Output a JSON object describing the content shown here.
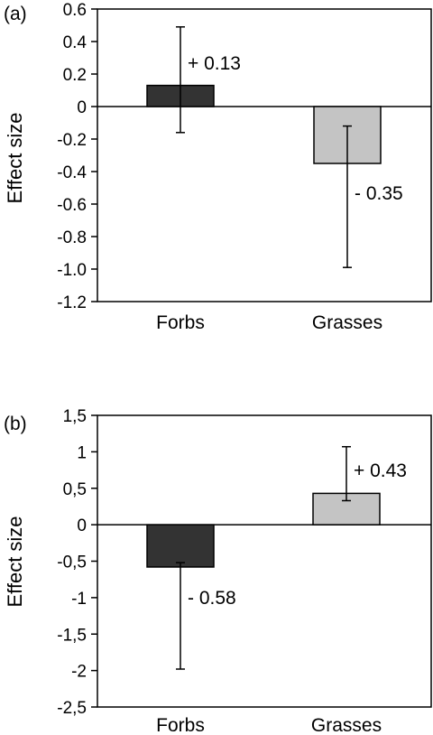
{
  "chart_data": [
    {
      "type": "bar",
      "panel_label": "(a)",
      "ylabel": "Effect size",
      "xlabel": "",
      "categories": [
        "Forbs",
        "Grasses"
      ],
      "values": [
        0.13,
        -0.35
      ],
      "error_low": [
        -0.16,
        -0.99
      ],
      "error_high": [
        0.49,
        -0.12
      ],
      "data_labels": [
        "+ 0.13",
        "- 0.35"
      ],
      "bar_colors": [
        "#333333",
        "#c4c4c4"
      ],
      "ylim": [
        -1.2,
        0.6
      ],
      "yticks": [
        0.6,
        0.4,
        0.2,
        0,
        -0.2,
        -0.4,
        -0.6,
        -0.8,
        -1.0,
        -1.2
      ],
      "ytick_labels": [
        "0.6",
        "0.4",
        "0.2",
        "0",
        "-0.2",
        "-0.4",
        "-0.6",
        "-0.8",
        "-1.0",
        "-1.2"
      ],
      "grid": false
    },
    {
      "type": "bar",
      "panel_label": "(b)",
      "ylabel": "Effect size",
      "xlabel": "",
      "categories": [
        "Forbs",
        "Grasses"
      ],
      "values": [
        -0.58,
        0.43
      ],
      "error_low": [
        -1.98,
        0.33
      ],
      "error_high": [
        -0.52,
        1.07
      ],
      "data_labels": [
        "- 0.58",
        "+ 0.43"
      ],
      "bar_colors": [
        "#333333",
        "#c4c4c4"
      ],
      "ylim": [
        -2.5,
        1.5
      ],
      "yticks": [
        1.5,
        1,
        0.5,
        0,
        -0.5,
        -1,
        -1.5,
        -2,
        -2.5
      ],
      "ytick_labels": [
        "1,5",
        "1",
        "0,5",
        "0",
        "-0,5",
        "-1",
        "-1,5",
        "-2",
        "-2,5"
      ],
      "grid": false
    }
  ]
}
